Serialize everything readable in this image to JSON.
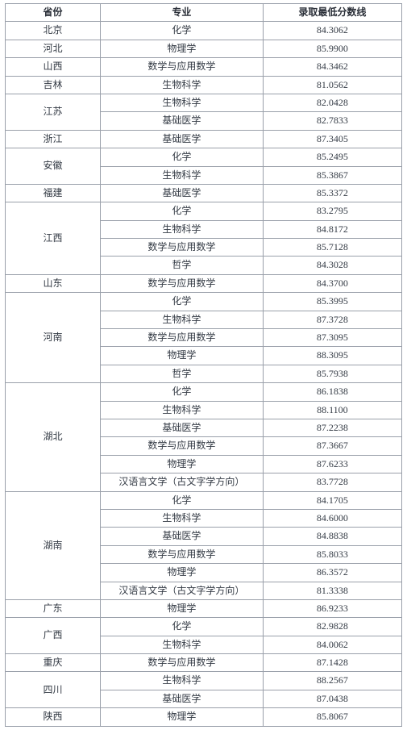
{
  "headers": [
    "省份",
    "专业",
    "录取最低分数线"
  ],
  "rows": [
    {
      "province": "北京",
      "majors": [
        {
          "name": "化学",
          "score": "84.3062"
        }
      ]
    },
    {
      "province": "河北",
      "majors": [
        {
          "name": "物理学",
          "score": "85.9900"
        }
      ]
    },
    {
      "province": "山西",
      "majors": [
        {
          "name": "数学与应用数学",
          "score": "84.3462"
        }
      ]
    },
    {
      "province": "吉林",
      "majors": [
        {
          "name": "生物科学",
          "score": "81.0562"
        }
      ]
    },
    {
      "province": "江苏",
      "majors": [
        {
          "name": "生物科学",
          "score": "82.0428"
        },
        {
          "name": "基础医学",
          "score": "82.7833"
        }
      ]
    },
    {
      "province": "浙江",
      "majors": [
        {
          "name": "基础医学",
          "score": "87.3405"
        }
      ]
    },
    {
      "province": "安徽",
      "majors": [
        {
          "name": "化学",
          "score": "85.2495"
        },
        {
          "name": "生物科学",
          "score": "85.3867"
        }
      ]
    },
    {
      "province": "福建",
      "majors": [
        {
          "name": "基础医学",
          "score": "85.3372"
        }
      ]
    },
    {
      "province": "江西",
      "majors": [
        {
          "name": "化学",
          "score": "83.2795"
        },
        {
          "name": "生物科学",
          "score": "84.8172"
        },
        {
          "name": "数学与应用数学",
          "score": "85.7128"
        },
        {
          "name": "哲学",
          "score": "84.3028"
        }
      ]
    },
    {
      "province": "山东",
      "majors": [
        {
          "name": "数学与应用数学",
          "score": "84.3700"
        }
      ]
    },
    {
      "province": "河南",
      "majors": [
        {
          "name": "化学",
          "score": "85.3995"
        },
        {
          "name": "生物科学",
          "score": "87.3728"
        },
        {
          "name": "数学与应用数学",
          "score": "87.3095"
        },
        {
          "name": "物理学",
          "score": "88.3095"
        },
        {
          "name": "哲学",
          "score": "85.7938"
        }
      ]
    },
    {
      "province": "湖北",
      "majors": [
        {
          "name": "化学",
          "score": "86.1838"
        },
        {
          "name": "生物科学",
          "score": "88.1100"
        },
        {
          "name": "基础医学",
          "score": "87.2238"
        },
        {
          "name": "数学与应用数学",
          "score": "87.3667"
        },
        {
          "name": "物理学",
          "score": "87.6233"
        },
        {
          "name": "汉语言文学（古文字学方向）",
          "score": "83.7728"
        }
      ]
    },
    {
      "province": "湖南",
      "majors": [
        {
          "name": "化学",
          "score": "84.1705"
        },
        {
          "name": "生物科学",
          "score": "84.6000"
        },
        {
          "name": "基础医学",
          "score": "84.8838"
        },
        {
          "name": "数学与应用数学",
          "score": "85.8033"
        },
        {
          "name": "物理学",
          "score": "86.3572"
        },
        {
          "name": "汉语言文学（古文字学方向）",
          "score": "81.3338"
        }
      ]
    },
    {
      "province": "广东",
      "majors": [
        {
          "name": "物理学",
          "score": "86.9233"
        }
      ]
    },
    {
      "province": "广西",
      "majors": [
        {
          "name": "化学",
          "score": "82.9828"
        },
        {
          "name": "生物科学",
          "score": "84.0062"
        }
      ]
    },
    {
      "province": "重庆",
      "majors": [
        {
          "name": "数学与应用数学",
          "score": "87.1428"
        }
      ]
    },
    {
      "province": "四川",
      "majors": [
        {
          "name": "生物科学",
          "score": "88.2567"
        },
        {
          "name": "基础医学",
          "score": "87.0438"
        }
      ]
    },
    {
      "province": "陕西",
      "majors": [
        {
          "name": "物理学",
          "score": "85.8067"
        }
      ]
    }
  ]
}
